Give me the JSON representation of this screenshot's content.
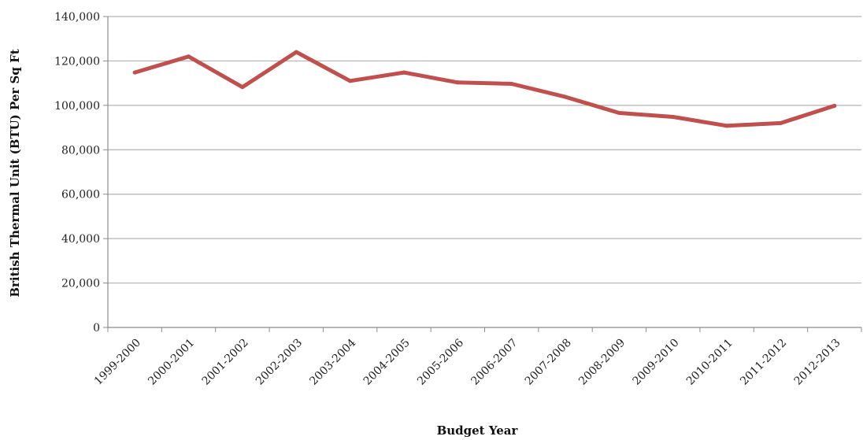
{
  "chart_data": {
    "type": "line",
    "title": "",
    "xlabel": "Budget Year",
    "ylabel": "British Thermal Unit (BTU) Per Sq Ft",
    "categories": [
      "1999-2000",
      "2000-2001",
      "2001-2002",
      "2002-2003",
      "2003-2004",
      "2004-2005",
      "2005-2006",
      "2006-2007",
      "2007-2008",
      "2008-2009",
      "2009-2010",
      "2010-2011",
      "2011-2012",
      "2012-2013"
    ],
    "series": [
      {
        "values": [
          114800,
          122000,
          108200,
          124000,
          111000,
          114800,
          110300,
          109700,
          103800,
          96600,
          94800,
          90800,
          92000,
          99800
        ],
        "color": "#c0504d"
      }
    ],
    "ylim": [
      0,
      140000
    ],
    "yticks": [
      0,
      20000,
      40000,
      60000,
      80000,
      100000,
      120000,
      140000
    ],
    "ytick_labels": [
      "0",
      "20,000",
      "40,000",
      "60,000",
      "80,000",
      "100,000",
      "120,000",
      "140,000"
    ],
    "grid": true,
    "gridline_color": "#b3b3b3",
    "axis_color": "#8c8c8c",
    "legend": "none"
  }
}
